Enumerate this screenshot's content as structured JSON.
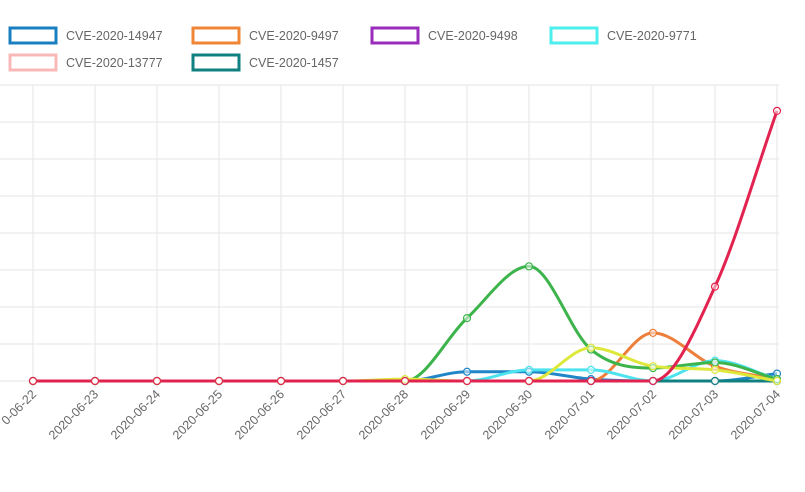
{
  "chart_data": {
    "type": "line",
    "legend_position": "top",
    "grid": true,
    "x": [
      "2020-06-22",
      "2020-06-23",
      "2020-06-24",
      "2020-06-25",
      "2020-06-26",
      "2020-06-27",
      "2020-06-28",
      "2020-06-29",
      "2020-06-30",
      "2020-07-01",
      "2020-07-02",
      "2020-07-03",
      "2020-07-04"
    ],
    "x_first_partial_label": "0-06-22",
    "ylim": [
      0,
      8
    ],
    "legend": [
      {
        "name": "CVE-2020-14947",
        "color": "#1a7fc1"
      },
      {
        "name": "CVE-2020-9497",
        "color": "#f08536"
      },
      {
        "name": "CVE-2020-9498",
        "color": "#9a2cbd"
      },
      {
        "name": "CVE-2020-9771",
        "color": "#4deeee"
      },
      {
        "name": "CVE-2020-13777",
        "color": "#f8b8b8"
      },
      {
        "name": "CVE-2020-1457",
        "color": "#108080"
      }
    ],
    "series": [
      {
        "name": "CVE-2020-14947",
        "color": "#1f86c8",
        "values": [
          0,
          0,
          0,
          0,
          0,
          0,
          0,
          0.25,
          0.25,
          0.05,
          0,
          0,
          0.2
        ]
      },
      {
        "name": "CVE-2020-9497",
        "color": "#ee7f3a",
        "values": [
          0,
          0,
          0,
          0,
          0,
          0,
          0,
          0,
          0,
          0,
          1.3,
          0.4,
          0.05
        ]
      },
      {
        "name": "CVE-2020-9498",
        "color": "#9a2cbd",
        "values": [
          0,
          0,
          0,
          0,
          0,
          0,
          0,
          0,
          0,
          0,
          0,
          0,
          0
        ]
      },
      {
        "name": "CVE-2020-9771",
        "color": "#4de3ee",
        "values": [
          0,
          0,
          0,
          0,
          0,
          0,
          0,
          0,
          0.3,
          0.3,
          0,
          0.55,
          0.05
        ]
      },
      {
        "name": "CVE-2020-13777",
        "color": "#f8b8b8",
        "values": [
          0,
          0,
          0,
          0,
          0,
          0,
          0,
          0,
          0,
          0,
          0,
          0,
          0
        ]
      },
      {
        "name": "CVE-2020-1457",
        "color": "#108080",
        "values": [
          0,
          0,
          0,
          0,
          0,
          0,
          0,
          0,
          0,
          0,
          0,
          0,
          0
        ]
      },
      {
        "color": "#3cb44b",
        "values": [
          0,
          0,
          0,
          0,
          0,
          0,
          0,
          1.7,
          3.1,
          0.85,
          0.35,
          0.5,
          0.05
        ]
      },
      {
        "color": "#dde83a",
        "values": [
          0,
          0,
          0,
          0,
          0,
          0,
          0.05,
          0,
          0,
          0.9,
          0.4,
          0.3,
          0
        ]
      },
      {
        "color": "#e3234f",
        "values": [
          0,
          0,
          0,
          0,
          0,
          0,
          0,
          0,
          0,
          0,
          0,
          2.55,
          7.3
        ]
      }
    ]
  }
}
